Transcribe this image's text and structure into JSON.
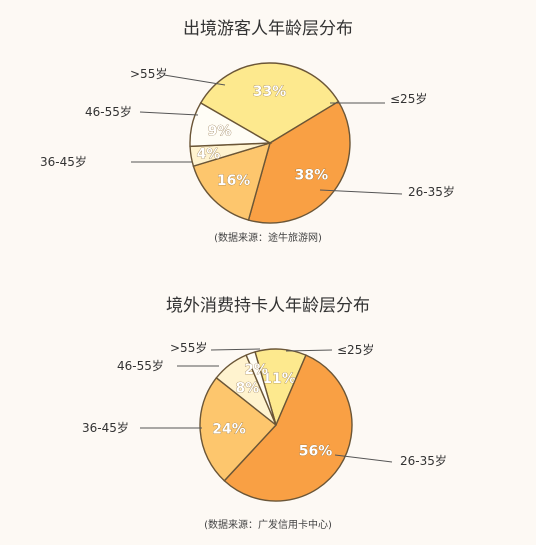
{
  "chart_data": [
    {
      "type": "pie",
      "title": "出境游客人年龄层分布",
      "source": "(数据来源：途牛旅游网)",
      "slices": [
        {
          "label": "≤25岁",
          "value": 33,
          "text": "33%",
          "color": "#fde98e"
        },
        {
          "label": "26-35岁",
          "value": 38,
          "text": "38%",
          "color": "#f9a044"
        },
        {
          "label": "36-45岁",
          "value": 16,
          "text": "16%",
          "color": "#fdc66d"
        },
        {
          "label": "46-55岁",
          "value": 4,
          "text": "4%",
          "color": "#fff3cf"
        },
        {
          "label": ">55岁",
          "value": 9,
          "text": "9%",
          "color": "#fffdf6"
        }
      ]
    },
    {
      "type": "pie",
      "title": "境外消费持卡人年龄层分布",
      "source": "(数据来源：广发信用卡中心)",
      "slices": [
        {
          "label": "≤25岁",
          "value": 11,
          "text": "11%",
          "color": "#fde98e"
        },
        {
          "label": "26-35岁",
          "value": 56,
          "text": "56%",
          "color": "#f9a044"
        },
        {
          "label": "36-45岁",
          "value": 24,
          "text": "24%",
          "color": "#fdc66d"
        },
        {
          "label": "46-55岁",
          "value": 8,
          "text": "8%",
          "color": "#fff3cf"
        },
        {
          "label": ">55岁",
          "value": 2,
          "text": "2%",
          "color": "#fffdf6"
        }
      ]
    }
  ]
}
